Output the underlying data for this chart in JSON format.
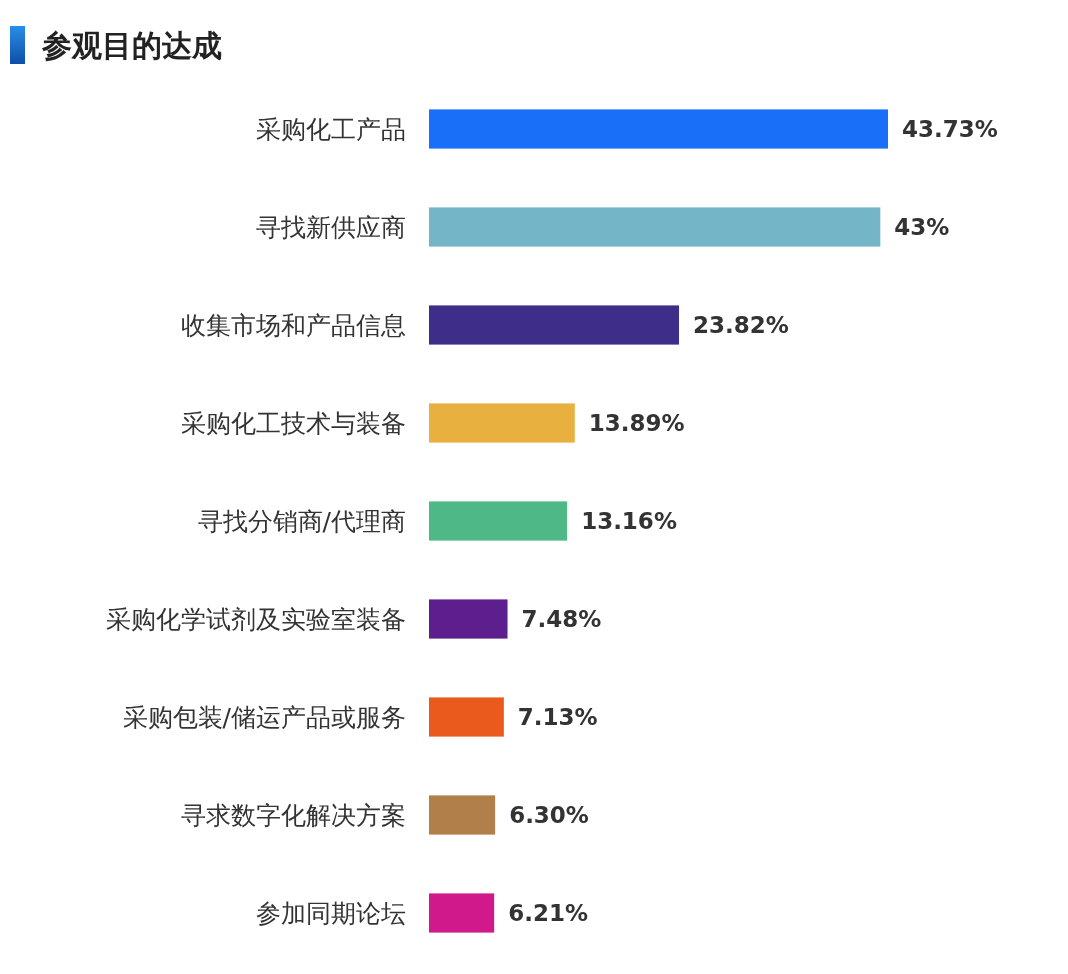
{
  "chart_data": {
    "type": "bar",
    "orientation": "horizontal",
    "title": "参观目的达成",
    "categories": [
      "采购化工产品",
      "寻找新供应商",
      "收集市场和产品信息",
      "采购化工技术与装备",
      "寻找分销商/代理商",
      "采购化学试剂及实验室装备",
      "采购包装/储运产品或服务",
      "寻求数字化解决方案",
      "参加同期论坛"
    ],
    "values": [
      43.73,
      43,
      23.82,
      13.89,
      13.16,
      7.48,
      7.13,
      6.3,
      6.21
    ],
    "value_labels": [
      "43.73%",
      "43%",
      "23.82%",
      "13.89%",
      "13.16%",
      "7.48%",
      "7.13%",
      "6.30%",
      "6.21%"
    ],
    "colors": [
      "#1a6ff8",
      "#74b6c8",
      "#3f2d8a",
      "#e8b13f",
      "#4fb887",
      "#5e1f8e",
      "#e95a1c",
      "#b07f4a",
      "#d01a8c"
    ]
  }
}
